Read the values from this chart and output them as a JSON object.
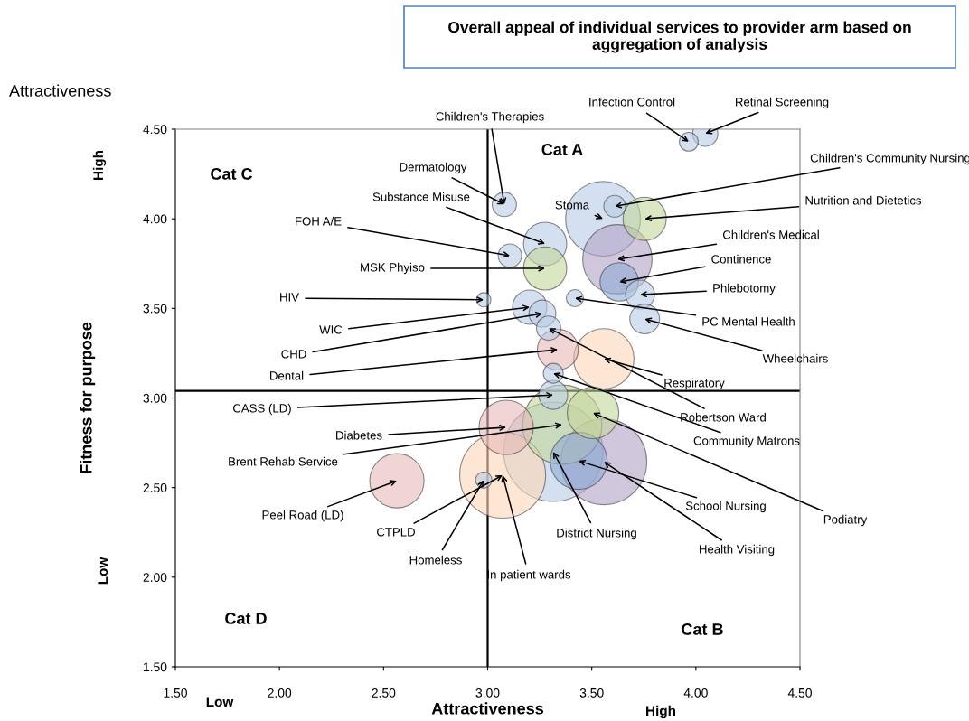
{
  "chart_data": {
    "type": "bubble",
    "title": "Overall appeal of individual services to provider arm based on aggregation of analysis",
    "xlabel": "Attractiveness",
    "ylabel": "Fitness for purpose",
    "xlim": [
      1.5,
      4.5
    ],
    "ylim": [
      1.5,
      4.5
    ],
    "xticks": [
      {
        "value": 1.5,
        "label": "1.50"
      },
      {
        "value": 2.0,
        "label": "2.00"
      },
      {
        "value": 2.5,
        "label": "2.50"
      },
      {
        "value": 3.0,
        "label": "3.00"
      },
      {
        "value": 3.5,
        "label": "3.50"
      },
      {
        "value": 4.0,
        "label": "4.00"
      },
      {
        "value": 4.5,
        "label": "4.50"
      }
    ],
    "yticks": [
      {
        "value": 1.5,
        "label": "1.50"
      },
      {
        "value": 2.0,
        "label": "2.00"
      },
      {
        "value": 2.5,
        "label": "2.50"
      },
      {
        "value": 3.0,
        "label": "3.00"
      },
      {
        "value": 3.5,
        "label": "3.50"
      },
      {
        "value": 4.0,
        "label": "4.00"
      },
      {
        "value": 4.5,
        "label": "4.50"
      }
    ],
    "grid": false,
    "marker": "circle",
    "series": [
      {
        "x": [
          3.315,
          3.558,
          3.072,
          3.554,
          3.358,
          3.623,
          3.558,
          3.437,
          3.089,
          2.564,
          3.506,
          3.754,
          3.276,
          3.276,
          3.337,
          3.632,
          3.202,
          3.732,
          3.754,
          3.315,
          3.263,
          4.045,
          3.08,
          3.293,
          3.107,
          3.61,
          3.315,
          3.966,
          3.419,
          2.981,
          2.981
        ],
        "values": [
          2.7,
          2.644,
          2.569,
          4.0,
          2.851,
          3.774,
          3.219,
          2.649,
          2.836,
          2.538,
          2.917,
          4.0,
          3.86,
          3.723,
          3.27,
          3.648,
          3.507,
          3.577,
          3.441,
          3.017,
          3.471,
          4.475,
          4.08,
          3.39,
          3.794,
          4.07,
          3.138,
          4.43,
          3.557,
          3.548,
          2.542
        ],
        "sizes": [
          1.0,
          0.75,
          0.75,
          0.57,
          0.64,
          0.49,
          0.37,
          0.33,
          0.3,
          0.3,
          0.27,
          0.19,
          0.19,
          0.19,
          0.17,
          0.15,
          0.12,
          0.085,
          0.09,
          0.085,
          0.074,
          0.065,
          0.06,
          0.06,
          0.056,
          0.048,
          0.04,
          0.036,
          0.03,
          0.021,
          0.027
        ],
        "colors": [
          "#b8cce4",
          "#b3a2c7",
          "#fcd5b5",
          "#b8cce4",
          "#c3d69b",
          "#b3a2c7",
          "#fcd5b5",
          "#8eaad6",
          "#e6b9b8",
          "#e6b9b8",
          "#c3d69b",
          "#c3d69b",
          "#b8cce4",
          "#c3d69b",
          "#e6b9b8",
          "#8eaad6",
          "#b8cce4",
          "#b8cce4",
          "#b8cce4",
          "#b8cce4",
          "#b8cce4",
          "#b8cce4",
          "#b8cce4",
          "#b8cce4",
          "#b8cce4",
          "#b8cce4",
          "#b8cce4",
          "#b8cce4",
          "#b8cce4",
          "#b8cce4",
          "#b8cce4"
        ]
      }
    ],
    "ref_lines": [
      {
        "axis": "x",
        "value": 3.0,
        "color": "#000000"
      },
      {
        "axis": "y",
        "value": 3.04,
        "color": "#000000"
      }
    ],
    "annotations": [
      "Attractiveness",
      "High",
      "Low",
      "Low",
      "High",
      "Cat A",
      "Cat B",
      "Cat C",
      "Cat D",
      {
        "text": "Children's Therapies",
        "x": 3.08,
        "y": 4.08
      },
      {
        "text": "Infection Control",
        "x": 3.966,
        "y": 4.43
      },
      {
        "text": "Retinal Screening",
        "x": 4.045,
        "y": 4.475
      },
      {
        "text": "Dermatology",
        "x": 3.08,
        "y": 4.08
      },
      {
        "text": "Substance Misuse",
        "x": 3.276,
        "y": 3.86
      },
      {
        "text": "Stoma",
        "x": 3.554,
        "y": 4.0
      },
      {
        "text": "Children's Community Nursing",
        "x": 3.61,
        "y": 4.07
      },
      {
        "text": "Nutrition and Dietetics",
        "x": 3.754,
        "y": 4.0
      },
      {
        "text": "FOH A/E",
        "x": 3.107,
        "y": 3.794
      },
      {
        "text": "Children's Medical",
        "x": 3.623,
        "y": 3.774
      },
      {
        "text": "MSK Phyiso",
        "x": 3.276,
        "y": 3.723
      },
      {
        "text": "Continence",
        "x": 3.632,
        "y": 3.648
      },
      {
        "text": "Phlebotomy",
        "x": 3.732,
        "y": 3.577
      },
      {
        "text": "HIV",
        "x": 2.981,
        "y": 3.548
      },
      {
        "text": "PC Mental Health",
        "x": 3.419,
        "y": 3.557
      },
      {
        "text": "WIC",
        "x": 3.202,
        "y": 3.507
      },
      {
        "text": "CHD",
        "x": 3.263,
        "y": 3.471
      },
      {
        "text": "Wheelchairs",
        "x": 3.754,
        "y": 3.441
      },
      {
        "text": "Dental",
        "x": 3.337,
        "y": 3.27
      },
      {
        "text": "Respiratory",
        "x": 3.558,
        "y": 3.219
      },
      {
        "text": "CASS (LD)",
        "x": 3.315,
        "y": 3.017
      },
      {
        "text": "Robertson Ward",
        "x": 3.293,
        "y": 3.39
      },
      {
        "text": "Community Matrons",
        "x": 3.315,
        "y": 3.138
      },
      {
        "text": "Diabetes",
        "x": 3.089,
        "y": 2.836
      },
      {
        "text": "Podiatry",
        "x": 3.506,
        "y": 2.917
      },
      {
        "text": "Brent Rehab Service",
        "x": 3.358,
        "y": 2.851
      },
      {
        "text": "School Nursing",
        "x": 3.437,
        "y": 2.649
      },
      {
        "text": "Peel Road (LD)",
        "x": 2.564,
        "y": 2.538
      },
      {
        "text": "District Nursing",
        "x": 3.315,
        "y": 2.7
      },
      {
        "text": "Health Visiting",
        "x": 3.558,
        "y": 2.644
      },
      {
        "text": "CTPLD",
        "x": 3.072,
        "y": 2.569
      },
      {
        "text": "Homeless",
        "x": 2.981,
        "y": 2.542
      },
      {
        "text": "In patient wards",
        "x": 3.072,
        "y": 2.569
      }
    ]
  }
}
